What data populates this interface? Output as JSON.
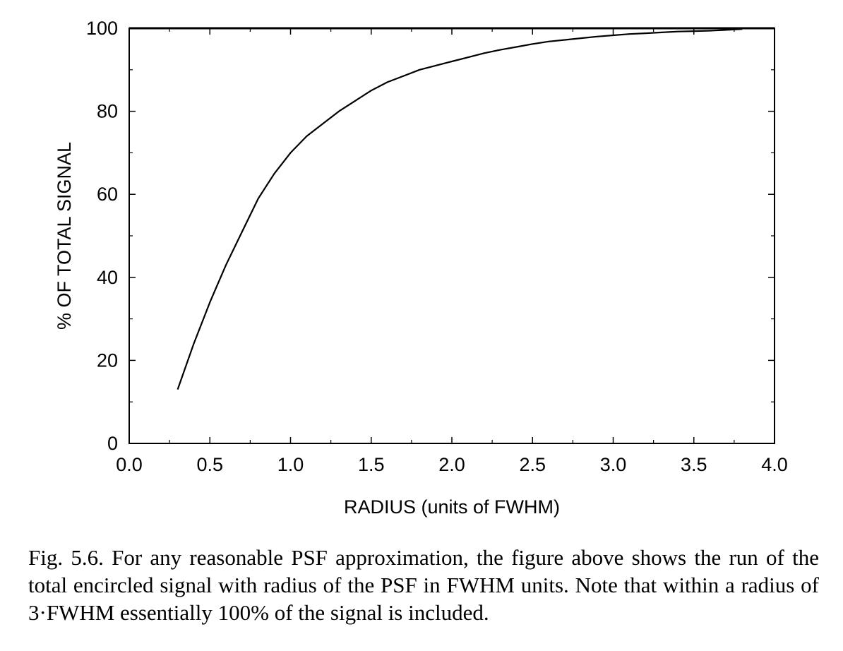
{
  "chart_data": {
    "type": "line",
    "xlabel": "RADIUS (units of FWHM)",
    "ylabel": "% OF TOTAL SIGNAL",
    "xlim": [
      0.0,
      4.0
    ],
    "ylim": [
      0,
      100
    ],
    "x_ticks": [
      "0.0",
      "0.5",
      "1.0",
      "1.5",
      "2.0",
      "2.5",
      "3.0",
      "3.5",
      "4.0"
    ],
    "y_ticks": [
      "0",
      "20",
      "40",
      "60",
      "80",
      "100"
    ],
    "grid": false,
    "legend": "none",
    "series": [
      {
        "x": [
          0.3,
          0.4,
          0.5,
          0.55,
          0.6,
          0.7,
          0.8,
          0.9,
          1.0,
          1.1,
          1.2,
          1.3,
          1.4,
          1.5,
          1.6,
          1.7,
          1.8,
          1.9,
          2.0,
          2.1,
          2.2,
          2.3,
          2.4,
          2.5,
          2.6,
          2.7,
          2.8,
          2.9,
          3.0,
          3.1,
          3.2,
          3.3,
          3.4,
          3.5,
          3.6,
          3.7,
          3.8
        ],
        "y": [
          13,
          24,
          34,
          38.5,
          43,
          51,
          59,
          65,
          70,
          74,
          77,
          80,
          82.5,
          85,
          87,
          88.5,
          90,
          91,
          92,
          93,
          94,
          94.8,
          95.5,
          96.2,
          96.8,
          97.2,
          97.6,
          98,
          98.3,
          98.6,
          98.8,
          99,
          99.2,
          99.3,
          99.4,
          99.6,
          99.8
        ]
      }
    ]
  },
  "caption": "Fig. 5.6.  For any reasonable PSF approximation, the figure above shows the run of the total encircled signal with radius of the PSF in FWHM units. Note that within a radius of 3·FWHM essentially 100% of the signal is included."
}
